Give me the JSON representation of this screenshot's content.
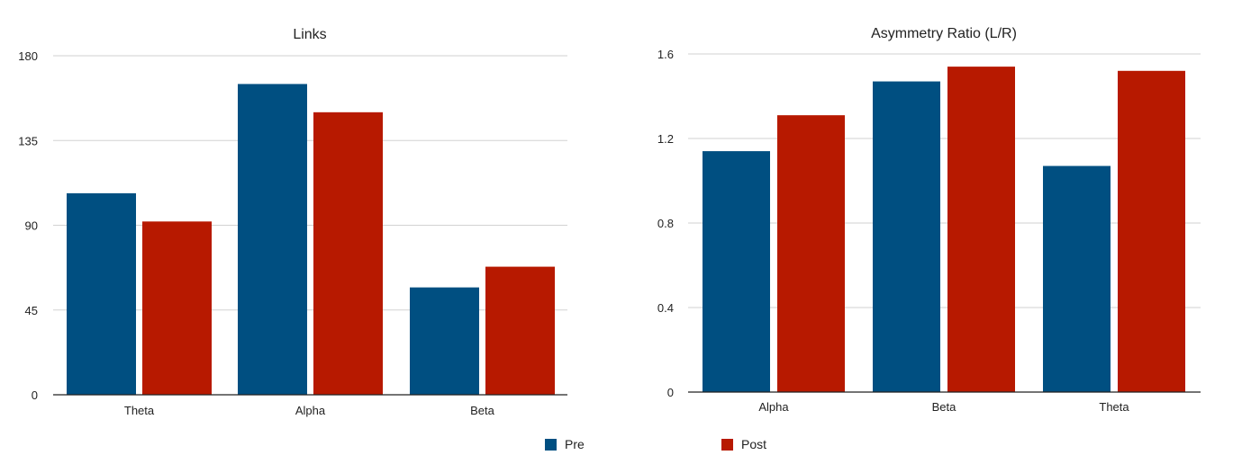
{
  "colors": {
    "pre": "#004f81",
    "post": "#b71900",
    "grid": "#d2d2d2",
    "axis": "#222222"
  },
  "legend": {
    "position": "bottom-center",
    "items": [
      {
        "key": "pre",
        "label": "Pre",
        "color": "#004f81"
      },
      {
        "key": "post",
        "label": "Post",
        "color": "#b71900"
      }
    ]
  },
  "chart_data": [
    {
      "type": "bar",
      "title": "Links",
      "categories": [
        "Theta",
        "Alpha",
        "Beta"
      ],
      "series": [
        {
          "name": "Pre",
          "values": [
            107,
            165,
            57
          ]
        },
        {
          "name": "Post",
          "values": [
            92,
            150,
            68
          ]
        }
      ],
      "ylim": [
        0,
        180
      ],
      "yticks": [
        "0",
        "45",
        "90",
        "135",
        "180"
      ],
      "grid": true
    },
    {
      "type": "bar",
      "title": "Asymmetry Ratio (L/R)",
      "categories": [
        "Alpha",
        "Beta",
        "Theta"
      ],
      "series": [
        {
          "name": "Pre",
          "values": [
            1.14,
            1.47,
            1.07
          ]
        },
        {
          "name": "Post",
          "values": [
            1.31,
            1.54,
            1.52
          ]
        }
      ],
      "ylim": [
        0,
        1.6
      ],
      "yticks": [
        "0",
        "0.4",
        "0.8",
        "1.2",
        "1.6"
      ],
      "grid": true
    }
  ]
}
